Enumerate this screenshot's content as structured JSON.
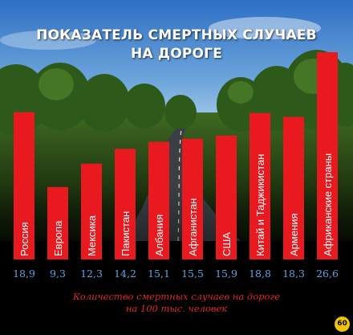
{
  "chart_data": {
    "type": "bar",
    "title_line1": "ПОКАЗАТЕЛЬ СМЕРТНЫХ СЛУЧАЕВ",
    "title_line2": "НА ДОРОГЕ",
    "categories": [
      "Россия",
      "Европа",
      "Мексика",
      "Пакистан",
      "Албания",
      "Афганистан",
      "США",
      "Китай и Таджикистан",
      "Армения",
      "Африканские страны"
    ],
    "values": [
      18.9,
      9.3,
      12.3,
      14.2,
      15.1,
      15.5,
      15.9,
      18.8,
      18.3,
      26.6
    ],
    "value_labels": [
      "18,9",
      "9,3",
      "12,3",
      "14,2",
      "15,1",
      "15,5",
      "15,9",
      "18,8",
      "18,3",
      "26,6"
    ],
    "caption_line1": "Количество смертных случаев на дороге",
    "caption_line2": "на 100 тыс. человек",
    "ylim": [
      0,
      26.6
    ],
    "grid": false,
    "bar_color": "#e8191f",
    "label_color": "#5aa6e0",
    "caption_color": "#e3262b"
  },
  "badge": {
    "text": "60",
    "color": "#f2c400"
  }
}
